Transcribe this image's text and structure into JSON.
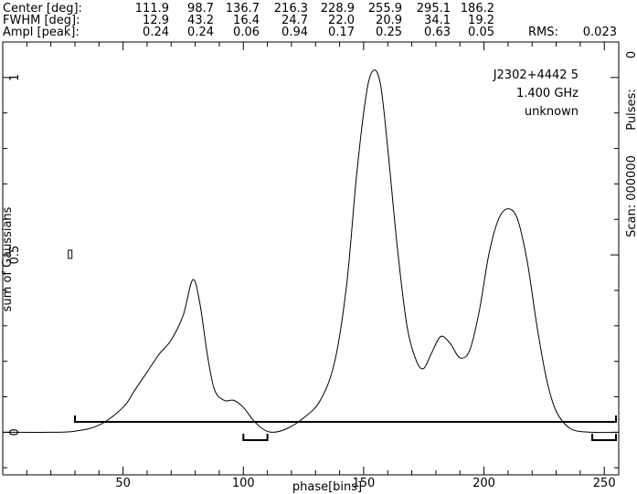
{
  "header": {
    "rows": [
      {
        "label": "Center [deg]:",
        "values": [
          "111.9",
          "98.7",
          "136.7",
          "216.3",
          "228.9",
          "255.9",
          "295.1",
          "186.2"
        ]
      },
      {
        "label": "FWHM  [deg]:",
        "values": [
          "12.9",
          "43.2",
          "16.4",
          "24.7",
          "22.0",
          "20.9",
          "34.1",
          "19.2"
        ]
      },
      {
        "label": "Ampl  [peak]:",
        "values": [
          "0.24",
          "0.24",
          "0.06",
          "0.94",
          "0.17",
          "0.25",
          "0.63",
          "0.05"
        ]
      }
    ],
    "rms_label": "RMS:",
    "rms_value": "0.023"
  },
  "info": {
    "source": "J2302+4442 5",
    "frequency": "1.400 GHz",
    "status": "unknown"
  },
  "right_axis": {
    "pulses_label": "Pulses:",
    "pulses_value": "0",
    "scan_label": "Scan: 000000"
  },
  "chart_data": {
    "type": "line",
    "title": "",
    "xlabel": "phase[bins]",
    "ylabel": "sum of Gaussians",
    "xlim": [
      0,
      256
    ],
    "ylim": [
      -0.12,
      1.1
    ],
    "xticks": [
      50,
      100,
      150,
      200,
      250
    ],
    "yticks": [
      0,
      0.5,
      1
    ],
    "ytick_labels": [
      "0",
      "0.5",
      "1"
    ],
    "series": [
      {
        "x": [
          0,
          20,
          30,
          40,
          50,
          55,
          60,
          65,
          70,
          75,
          79,
          82,
          85,
          88,
          92,
          96,
          100,
          104,
          108,
          112,
          118,
          125,
          132,
          138,
          143,
          147,
          151,
          154,
          157,
          160,
          164,
          168,
          172,
          175,
          178,
          182,
          186,
          190,
          194,
          198,
          202,
          206,
          210,
          214,
          218,
          222,
          226,
          230,
          236,
          245,
          256
        ],
        "y": [
          0.0,
          0.0,
          0.003,
          0.02,
          0.07,
          0.12,
          0.17,
          0.22,
          0.26,
          0.33,
          0.43,
          0.36,
          0.22,
          0.12,
          0.09,
          0.09,
          0.07,
          0.035,
          0.01,
          0.0,
          0.01,
          0.04,
          0.09,
          0.2,
          0.42,
          0.72,
          0.95,
          1.02,
          0.98,
          0.8,
          0.52,
          0.3,
          0.2,
          0.18,
          0.22,
          0.27,
          0.25,
          0.21,
          0.23,
          0.34,
          0.5,
          0.6,
          0.63,
          0.6,
          0.48,
          0.3,
          0.15,
          0.06,
          0.01,
          0.0,
          0.0
        ]
      }
    ],
    "component_brackets": [
      {
        "from": 30,
        "to": 256
      },
      {
        "from": 100,
        "to": 110
      },
      {
        "from": 245,
        "to": 255
      }
    ],
    "marker_box": {
      "x": 28,
      "y": 0.49
    }
  }
}
